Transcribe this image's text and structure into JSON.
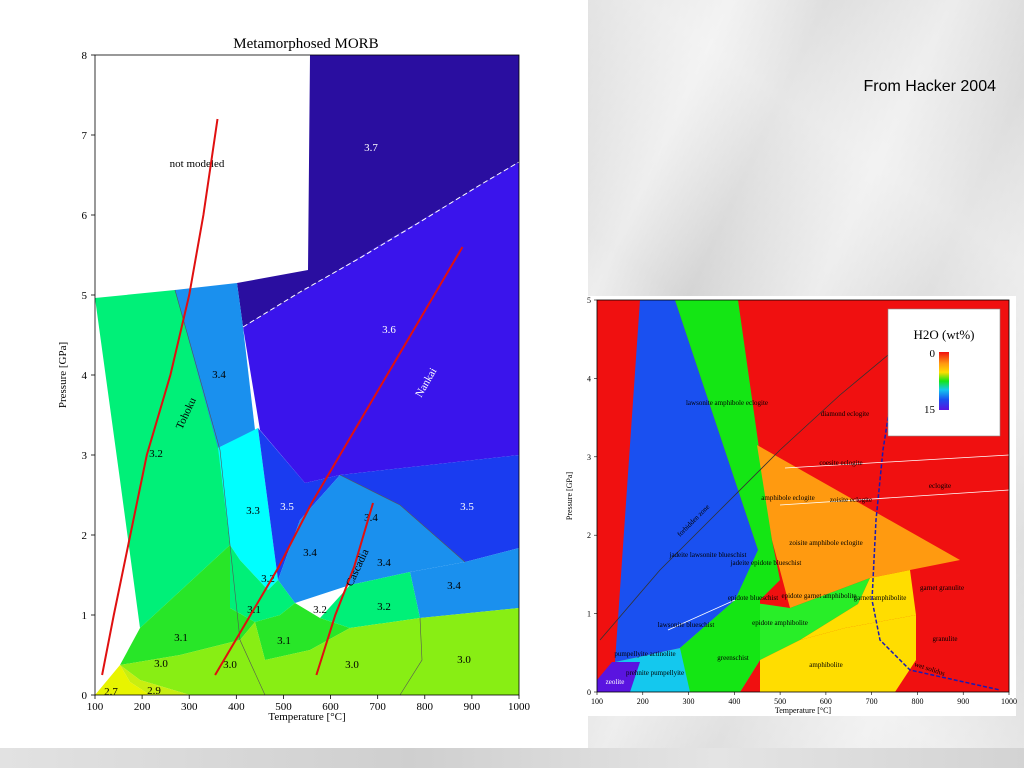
{
  "caption": "From Hacker 2004",
  "chart_data": [
    {
      "type": "area",
      "title": "Metamorphosed MORB",
      "xlabel": "Temperature [°C]",
      "ylabel": "Pressure [GPa]",
      "xlim": [
        100,
        1000
      ],
      "ylim": [
        0,
        8
      ],
      "x_ticks": [
        100,
        200,
        300,
        400,
        500,
        600,
        700,
        800,
        900,
        1000
      ],
      "y_ticks": [
        0,
        1,
        2,
        3,
        4,
        5,
        6,
        7,
        8
      ],
      "unmodeled_label": "not modeled",
      "field_labels": [
        "3.7",
        "3.6",
        "3.5",
        "3.5",
        "3.4",
        "3.4",
        "3.4",
        "3.4",
        "3.4",
        "3.3",
        "3.2",
        "3.2",
        "3.2",
        "3.2",
        "3.1",
        "3.1",
        "3.1",
        "3.0",
        "3.0",
        "3.0",
        "3.0",
        "2.9",
        "2.7"
      ],
      "geotherms": [
        {
          "name": "Tohoku",
          "points": [
            [
              115,
              0.25
            ],
            [
              140,
              1.0
            ],
            [
              175,
              2.0
            ],
            [
              210,
              3.0
            ],
            [
              260,
              4.0
            ],
            [
              300,
              5.0
            ],
            [
              330,
              6.0
            ],
            [
              360,
              7.2
            ]
          ]
        },
        {
          "name": "Nankai",
          "points": [
            [
              355,
              0.25
            ],
            [
              420,
              0.9
            ],
            [
              490,
              1.6
            ],
            [
              560,
              2.4
            ],
            [
              640,
              3.2
            ],
            [
              720,
              4.0
            ],
            [
              800,
              4.8
            ],
            [
              880,
              5.6
            ]
          ]
        },
        {
          "name": "Cascadia",
          "points": [
            [
              570,
              0.25
            ],
            [
              610,
              1.0
            ],
            [
              650,
              1.6
            ],
            [
              690,
              2.4
            ]
          ]
        }
      ],
      "colors": {
        "3.7": "#2a0ea0",
        "3.6": "#3a14ec",
        "3.5": "#1a3cf0",
        "3.4": "#1a90ee",
        "3.3": "#00ffff",
        "3.2": "#00f078",
        "3.1": "#28e628",
        "3.0": "#88ee14",
        "2.9": "#c8ee10",
        "2.7": "#e8f400",
        "geotherm": "#e01010"
      }
    },
    {
      "type": "area",
      "title": "",
      "xlabel": "Temperature [°C]",
      "ylabel": "Pressure [GPa]",
      "xlim": [
        100,
        1000
      ],
      "ylim": [
        0,
        5
      ],
      "x_ticks": [
        100,
        200,
        300,
        400,
        500,
        600,
        700,
        800,
        900,
        1000
      ],
      "y_ticks": [
        0,
        1,
        2,
        3,
        4,
        5
      ],
      "legend": {
        "title": "H2O (wt%)",
        "top": "0",
        "bottom": "15"
      },
      "facies": [
        "lawsonite amphibole eclogite",
        "diamond eclogite",
        "coesite eclogite",
        "eclogite",
        "amphibole eclogite",
        "zoisite eclogite",
        "zoisite amphibole eclogite",
        "jadeite lawsonite blueschist",
        "jadeite epidote blueschist",
        "garnet granulite",
        "epidote blueschist",
        "epidote garnet amphibolite",
        "garnet amphibolite",
        "lawsonite blueschist",
        "epidote amphibolite",
        "granulite",
        "pumpellyite actinolite",
        "greenschist",
        "prehnite pumpellyite",
        "amphibolite",
        "zeolite"
      ],
      "curve_labels": [
        "forbidden zone",
        "wet solidus"
      ],
      "colors": {
        "zeolite": "#5a14e0",
        "blue": "#1a50f0",
        "cyan": "#14c8ee",
        "green": "#14e614",
        "light-green": "#28ee28",
        "yellow": "#ffdd00",
        "orange": "#ff9a10",
        "red": "#f01010",
        "solidus": "#1a1ab4"
      }
    }
  ]
}
